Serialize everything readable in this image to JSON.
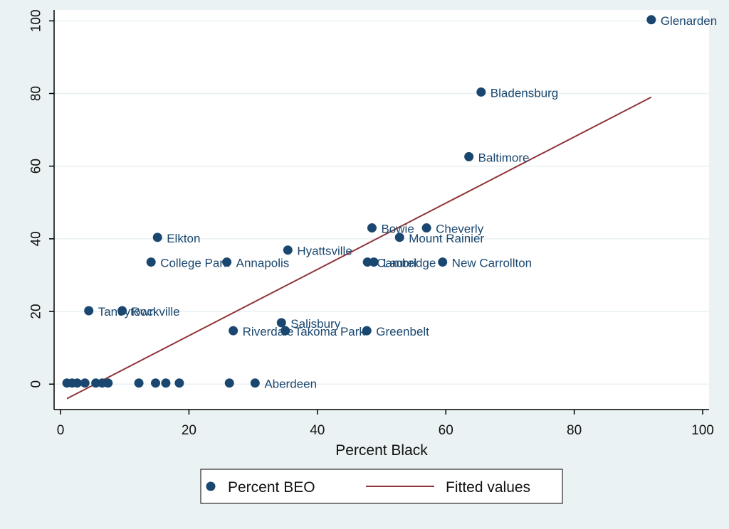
{
  "chart_data": {
    "type": "scatter",
    "title": "",
    "xlabel": "Percent Black",
    "ylabel": "",
    "xlim": [
      -1,
      101
    ],
    "ylim": [
      -7,
      103
    ],
    "xticks": [
      0,
      20,
      40,
      60,
      80,
      100
    ],
    "yticks": [
      0,
      20,
      40,
      60,
      80,
      100
    ],
    "grid": true,
    "legend_position": "bottom",
    "colors": {
      "points": "#1a476f",
      "fit": "#90353b"
    },
    "series": [
      {
        "name": "Percent BEO",
        "type": "scatter",
        "points": [
          {
            "label": "Glenarden",
            "x": 92.0,
            "y": 100.3
          },
          {
            "label": "Bladensburg",
            "x": 65.5,
            "y": 80.4
          },
          {
            "label": "Baltimore",
            "x": 63.6,
            "y": 62.6
          },
          {
            "label": "Bowie",
            "x": 48.5,
            "y": 43.0
          },
          {
            "label": "Cheverly",
            "x": 57.0,
            "y": 43.0
          },
          {
            "label": "Mount Rainier",
            "x": 52.8,
            "y": 40.4
          },
          {
            "label": "Elkton",
            "x": 15.1,
            "y": 40.4
          },
          {
            "label": "Hyattsville",
            "x": 35.4,
            "y": 36.9
          },
          {
            "label": "College Park",
            "x": 14.1,
            "y": 33.6
          },
          {
            "label": "Annapolis",
            "x": 25.9,
            "y": 33.6
          },
          {
            "label": "Cambridge",
            "x": 47.8,
            "y": 33.6
          },
          {
            "label": "Laurel",
            "x": 48.8,
            "y": 33.6
          },
          {
            "label": "New Carrollton",
            "x": 59.5,
            "y": 33.6
          },
          {
            "label": "Taneytown",
            "x": 4.4,
            "y": 20.2
          },
          {
            "label": "Rockville",
            "x": 9.6,
            "y": 20.2
          },
          {
            "label": "Salisbury",
            "x": 34.4,
            "y": 16.9
          },
          {
            "label": "Riverdale",
            "x": 26.9,
            "y": 14.7
          },
          {
            "label": "Takoma Park",
            "x": 35.0,
            "y": 14.7
          },
          {
            "label": "Greenbelt",
            "x": 47.7,
            "y": 14.7
          },
          {
            "label": "Aberdeen",
            "x": 30.3,
            "y": 0.3
          },
          {
            "label": "",
            "x": 1.0,
            "y": 0.3
          },
          {
            "label": "",
            "x": 1.8,
            "y": 0.3
          },
          {
            "label": "",
            "x": 2.6,
            "y": 0.3
          },
          {
            "label": "",
            "x": 3.8,
            "y": 0.3
          },
          {
            "label": "",
            "x": 5.5,
            "y": 0.3
          },
          {
            "label": "",
            "x": 6.5,
            "y": 0.3
          },
          {
            "label": "",
            "x": 7.4,
            "y": 0.3
          },
          {
            "label": "",
            "x": 12.2,
            "y": 0.3
          },
          {
            "label": "",
            "x": 14.8,
            "y": 0.3
          },
          {
            "label": "",
            "x": 16.4,
            "y": 0.3
          },
          {
            "label": "",
            "x": 18.5,
            "y": 0.3
          },
          {
            "label": "",
            "x": 26.3,
            "y": 0.3
          }
        ]
      },
      {
        "name": "Fitted values",
        "type": "line",
        "x": [
          1.0,
          92.0
        ],
        "y": [
          -4.0,
          79.0
        ]
      }
    ]
  }
}
